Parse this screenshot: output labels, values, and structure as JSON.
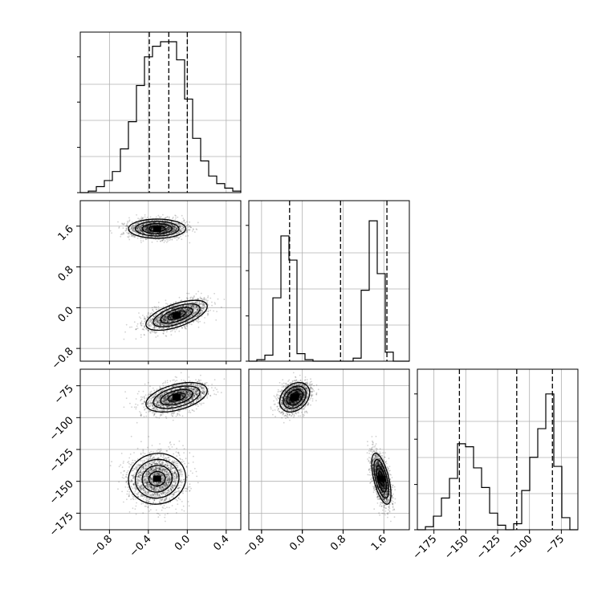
{
  "chart_data": {
    "type": "corner",
    "grid": true,
    "parameters": [
      {
        "index": 0,
        "range": [
          -1.1,
          0.55
        ],
        "ticks": [
          -0.8,
          -0.4,
          0.0,
          0.4
        ],
        "tick_labels": [
          "−0.8",
          "−0.4",
          "0.0",
          "0.4"
        ],
        "quantiles": [
          -0.39,
          -0.19,
          0.0
        ],
        "histogram": [
          0.0,
          0.01,
          0.04,
          0.08,
          0.14,
          0.29,
          0.47,
          0.71,
          0.9,
          0.97,
          1.0,
          1.0,
          0.88,
          0.62,
          0.36,
          0.21,
          0.11,
          0.06,
          0.03,
          0.01
        ]
      },
      {
        "index": 1,
        "range": [
          -1.05,
          2.1
        ],
        "ticks": [
          -0.8,
          0.0,
          0.8,
          1.6
        ],
        "tick_labels": [
          "−0.8",
          "0.0",
          "0.8",
          "1.6"
        ],
        "quantiles": [
          -0.25,
          0.75,
          1.66
        ],
        "histogram": [
          0.0,
          0.01,
          0.04,
          0.42,
          0.83,
          0.67,
          0.05,
          0.01,
          0.0,
          0.0,
          0.0,
          0.0,
          0.0,
          0.02,
          0.47,
          0.93,
          0.58,
          0.06,
          0.0,
          0.0
        ]
      },
      {
        "index": 2,
        "range": [
          -188,
          -62
        ],
        "ticks": [
          -175,
          -150,
          -125,
          -100,
          -75
        ],
        "tick_labels": [
          "−175",
          "−150",
          "−125",
          "−100",
          "−75"
        ],
        "quantiles": [
          -155,
          -110,
          -82
        ],
        "histogram": [
          0.0,
          0.02,
          0.09,
          0.21,
          0.34,
          0.57,
          0.55,
          0.41,
          0.28,
          0.11,
          0.03,
          0.0,
          0.04,
          0.26,
          0.48,
          0.67,
          0.9,
          0.42,
          0.08,
          0.0
        ]
      }
    ],
    "modes": [
      {
        "means": [
          -0.31,
          1.55,
          -148
        ],
        "sd": [
          0.14,
          0.09,
          9.5
        ],
        "corr": {
          "0-1": 0.0,
          "0-2": 0.05,
          "1-2": -0.6
        }
      },
      {
        "means": [
          -0.11,
          -0.15,
          -84
        ],
        "sd": [
          0.15,
          0.14,
          5.5
        ],
        "corr": {
          "0-1": 0.6,
          "0-2": 0.45,
          "1-2": 0.3
        }
      }
    ],
    "samples_per_mode": 2200
  }
}
